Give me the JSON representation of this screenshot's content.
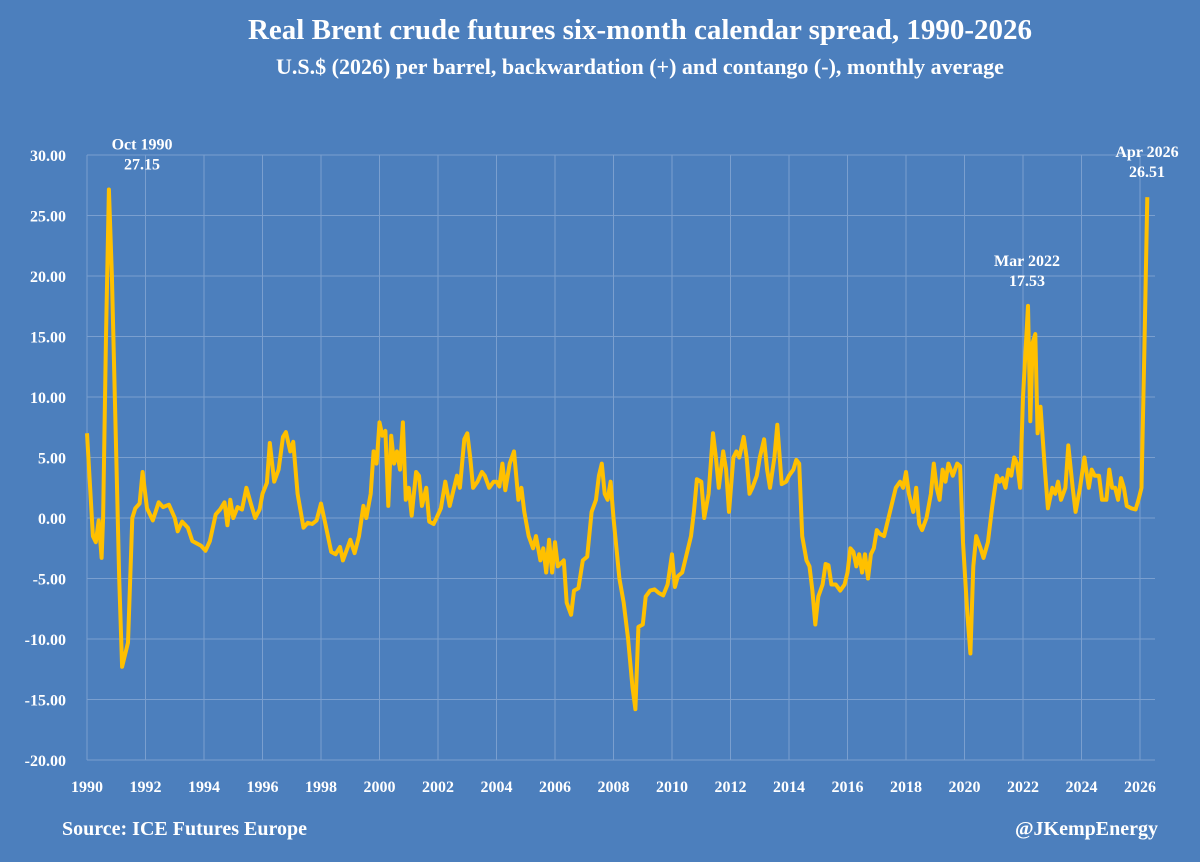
{
  "chart_data": {
    "type": "line",
    "title": "Real Brent crude futures six-month calendar spread, 1990-2026",
    "subtitle": "U.S.$ (2026) per barrel, backwardation (+) and contango (-), monthly average",
    "xlabel": "",
    "ylabel": "",
    "xlim": [
      1990,
      2026.5
    ],
    "ylim": [
      -20,
      30
    ],
    "grid": true,
    "legend": "none",
    "x_ticks": [
      "1990",
      "1992",
      "1994",
      "1996",
      "1998",
      "2000",
      "2002",
      "2004",
      "2006",
      "2008",
      "2010",
      "2012",
      "2014",
      "2016",
      "2018",
      "2020",
      "2022",
      "2024",
      "2026"
    ],
    "y_ticks": [
      "30.00",
      "25.00",
      "20.00",
      "15.00",
      "10.00",
      "5.00",
      "0.00",
      "-5.00",
      "-10.00",
      "-15.00",
      "-20.00"
    ],
    "colors": {
      "background": "#4c7fbd",
      "line": "#ffc000",
      "grid": "#7a9fcf"
    },
    "annotations": [
      {
        "label": "Oct 1990",
        "value": "27.15",
        "x": 1990.75,
        "y": 27.15
      },
      {
        "label": "Mar 2022",
        "value": "17.53",
        "x": 2022.17,
        "y": 17.53
      },
      {
        "label": "Apr 2026",
        "value": "26.51",
        "x": 2026.25,
        "y": 26.51
      }
    ],
    "series": [
      {
        "x": [
          1990.0,
          1990.2,
          1990.3,
          1990.4,
          1990.5,
          1990.55,
          1990.65,
          1990.75,
          1990.85,
          1991.0,
          1991.1,
          1991.2,
          1991.4,
          1991.55,
          1991.65,
          1991.8,
          1991.9,
          1992.05,
          1992.25,
          1992.45,
          1992.6,
          1992.8,
          1993.0,
          1993.1,
          1993.25,
          1993.45,
          1993.6,
          1993.75,
          1993.9,
          1994.05,
          1994.2,
          1994.4,
          1994.55,
          1994.7,
          1994.8,
          1994.9,
          1995.0,
          1995.15,
          1995.3,
          1995.45,
          1995.6,
          1995.75,
          1995.9,
          1996.0,
          1996.15,
          1996.25,
          1996.4,
          1996.55,
          1996.7,
          1996.8,
          1996.95,
          1997.05,
          1997.2,
          1997.4,
          1997.55,
          1997.7,
          1997.85,
          1998.0,
          1998.15,
          1998.35,
          1998.5,
          1998.65,
          1998.75,
          1998.9,
          1999.0,
          1999.15,
          1999.3,
          1999.45,
          1999.55,
          1999.7,
          1999.8,
          1999.9,
          2000.0,
          2000.1,
          2000.2,
          2000.3,
          2000.4,
          2000.5,
          2000.6,
          2000.7,
          2000.8,
          2000.9,
          2001.0,
          2001.1,
          2001.25,
          2001.35,
          2001.45,
          2001.6,
          2001.7,
          2001.85,
          2001.95,
          2002.1,
          2002.25,
          2002.4,
          2002.5,
          2002.65,
          2002.75,
          2002.9,
          2003.0,
          2003.1,
          2003.2,
          2003.35,
          2003.5,
          2003.6,
          2003.75,
          2003.9,
          2004.0,
          2004.1,
          2004.2,
          2004.3,
          2004.45,
          2004.6,
          2004.75,
          2004.85,
          2004.95,
          2005.1,
          2005.25,
          2005.35,
          2005.5,
          2005.6,
          2005.7,
          2005.8,
          2005.9,
          2006.0,
          2006.1,
          2006.3,
          2006.4,
          2006.55,
          2006.65,
          2006.8,
          2006.95,
          2007.1,
          2007.25,
          2007.4,
          2007.5,
          2007.6,
          2007.7,
          2007.8,
          2007.9,
          2008.0,
          2008.2,
          2008.35,
          2008.5,
          2008.65,
          2008.75,
          2008.85,
          2009.0,
          2009.1,
          2009.25,
          2009.4,
          2009.55,
          2009.7,
          2009.85,
          2010.0,
          2010.1,
          2010.2,
          2010.35,
          2010.5,
          2010.65,
          2010.75,
          2010.85,
          2011.0,
          2011.1,
          2011.25,
          2011.4,
          2011.5,
          2011.6,
          2011.75,
          2011.85,
          2011.95,
          2012.1,
          2012.2,
          2012.3,
          2012.45,
          2012.55,
          2012.65,
          2012.75,
          2012.9,
          2013.0,
          2013.15,
          2013.25,
          2013.35,
          2013.5,
          2013.6,
          2013.75,
          2013.9,
          2014.0,
          2014.15,
          2014.25,
          2014.35,
          2014.45,
          2014.6,
          2014.7,
          2014.8,
          2014.9,
          2015.0,
          2015.15,
          2015.25,
          2015.35,
          2015.45,
          2015.6,
          2015.75,
          2015.9,
          2016.0,
          2016.1,
          2016.2,
          2016.3,
          2016.4,
          2016.5,
          2016.6,
          2016.7,
          2016.8,
          2016.9,
          2017.0,
          2017.1,
          2017.25,
          2017.35,
          2017.5,
          2017.65,
          2017.8,
          2017.9,
          2018.0,
          2018.1,
          2018.25,
          2018.35,
          2018.45,
          2018.55,
          2018.7,
          2018.85,
          2018.95,
          2019.05,
          2019.15,
          2019.25,
          2019.35,
          2019.45,
          2019.6,
          2019.75,
          2019.85,
          2019.95,
          2020.1,
          2020.2,
          2020.3,
          2020.4,
          2020.55,
          2020.65,
          2020.8,
          2020.95,
          2021.1,
          2021.2,
          2021.3,
          2021.4,
          2021.5,
          2021.6,
          2021.7,
          2021.8,
          2021.9,
          2022.0,
          2022.17,
          2022.25,
          2022.33,
          2022.42,
          2022.5,
          2022.6,
          2022.75,
          2022.85,
          2023.0,
          2023.1,
          2023.2,
          2023.3,
          2023.45,
          2023.55,
          2023.7,
          2023.8,
          2023.95,
          2024.1,
          2024.25,
          2024.35,
          2024.45,
          2024.6,
          2024.7,
          2024.85,
          2024.95,
          2025.05,
          2025.15,
          2025.25,
          2025.35,
          2025.45,
          2025.55,
          2025.7,
          2025.85,
          2025.95,
          2026.05,
          2026.15,
          2026.25
        ],
        "y": [
          7.0,
          -1.5,
          -2.0,
          -0.2,
          -3.3,
          0.0,
          15.0,
          27.15,
          20.0,
          5.0,
          -5.0,
          -12.3,
          -10.3,
          0.0,
          0.8,
          1.2,
          3.8,
          0.8,
          -0.2,
          1.3,
          0.9,
          1.1,
          0.0,
          -1.1,
          -0.3,
          -0.8,
          -1.9,
          -2.1,
          -2.3,
          -2.7,
          -1.9,
          0.3,
          0.7,
          1.3,
          -0.6,
          1.5,
          0.0,
          0.9,
          0.7,
          2.5,
          1.2,
          0.0,
          0.7,
          2.0,
          2.9,
          6.2,
          3.0,
          4.0,
          6.7,
          7.1,
          5.5,
          6.3,
          2.0,
          -0.8,
          -0.4,
          -0.5,
          -0.2,
          1.2,
          -0.5,
          -2.8,
          -3.0,
          -2.4,
          -3.5,
          -2.5,
          -1.8,
          -2.9,
          -1.5,
          1.0,
          0.0,
          2.0,
          5.5,
          4.5,
          7.9,
          6.8,
          7.2,
          1.0,
          6.8,
          4.5,
          5.5,
          4.0,
          7.9,
          1.5,
          2.5,
          0.2,
          3.8,
          3.5,
          1.0,
          2.5,
          -0.3,
          -0.5,
          0.0,
          0.8,
          3.0,
          1.0,
          2.0,
          3.5,
          2.5,
          6.5,
          7.0,
          5.0,
          2.5,
          3.0,
          3.8,
          3.5,
          2.5,
          3.0,
          3.0,
          2.6,
          4.5,
          2.3,
          4.5,
          5.5,
          1.5,
          2.5,
          0.5,
          -1.5,
          -2.5,
          -1.5,
          -3.5,
          -2.5,
          -4.5,
          -1.8,
          -4.5,
          -2.0,
          -4.0,
          -3.5,
          -7.0,
          -8.0,
          -6.0,
          -5.8,
          -3.5,
          -3.2,
          0.5,
          1.5,
          3.5,
          4.5,
          2.0,
          1.5,
          3.0,
          0.0,
          -5.0,
          -7.0,
          -10.0,
          -14.0,
          -15.8,
          -9.0,
          -8.8,
          -6.5,
          -6.0,
          -5.9,
          -6.2,
          -6.4,
          -5.5,
          -3.0,
          -5.7,
          -4.8,
          -4.5,
          -3.0,
          -1.5,
          0.5,
          3.2,
          3.0,
          0.0,
          2.0,
          7.0,
          5.0,
          2.5,
          5.5,
          4.0,
          0.5,
          5.0,
          5.5,
          5.0,
          6.7,
          5.0,
          2.0,
          2.5,
          3.5,
          5.0,
          6.5,
          4.0,
          2.5,
          5.0,
          7.7,
          2.8,
          3.0,
          3.5,
          4.0,
          4.8,
          4.5,
          -1.5,
          -3.5,
          -4.0,
          -6.0,
          -8.8,
          -6.5,
          -5.5,
          -3.8,
          -3.9,
          -5.5,
          -5.5,
          -6.0,
          -5.5,
          -4.5,
          -2.5,
          -2.8,
          -4.0,
          -3.0,
          -4.5,
          -3.0,
          -5.0,
          -3.0,
          -2.5,
          -1.0,
          -1.3,
          -1.5,
          -0.5,
          1.0,
          2.5,
          3.0,
          2.5,
          3.8,
          2.0,
          0.5,
          2.5,
          -0.5,
          -1.0,
          0.0,
          2.0,
          4.5,
          2.5,
          1.5,
          4.0,
          3.0,
          4.5,
          3.5,
          4.5,
          4.3,
          -2.0,
          -8.0,
          -11.2,
          -4.0,
          -1.5,
          -2.5,
          -3.3,
          -2.0,
          1.0,
          3.5,
          3.0,
          3.3,
          2.5,
          4.0,
          3.5,
          5.0,
          4.5,
          2.5,
          10.0,
          17.53,
          8.0,
          14.5,
          15.2,
          7.0,
          9.2,
          4.0,
          0.8,
          2.5,
          2.0,
          3.0,
          1.5,
          2.5,
          6.0,
          2.5,
          0.5,
          2.5,
          5.0,
          2.5,
          4.0,
          3.5,
          3.5,
          1.5,
          1.5,
          4.0,
          2.5,
          2.5,
          1.5,
          3.3,
          2.5,
          1.0,
          0.8,
          0.7,
          1.5,
          2.5,
          14.0,
          26.51
        ]
      }
    ]
  },
  "footer": {
    "source": "Source: ICE Futures Europe",
    "handle": "@JKempEnergy"
  }
}
